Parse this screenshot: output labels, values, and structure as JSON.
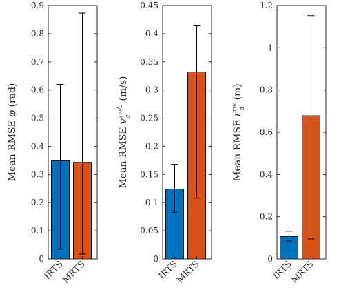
{
  "chart_data": [
    {
      "type": "bar",
      "categories": [
        "IRTS",
        "MRTS"
      ],
      "values": [
        0.349,
        0.343
      ],
      "error_low": [
        0.035,
        0.017
      ],
      "error_high": [
        0.62,
        0.873
      ],
      "colors": [
        "#0072BD",
        "#D95319"
      ],
      "ylabel": {
        "prefix": "Mean RMSE ",
        "symbol": "φ",
        "sup": "",
        "sub": "",
        "unit": " (rad)"
      },
      "ylim": [
        0,
        0.9
      ],
      "yticks": [
        0,
        0.1,
        0.2,
        0.3,
        0.4,
        0.5,
        0.6,
        0.7,
        0.8,
        0.9
      ],
      "ytick_labels": [
        "0",
        "0.1",
        "0.2",
        "0.3",
        "0.4",
        "0.5",
        "0.6",
        "0.7",
        "0.8",
        "0.9"
      ]
    },
    {
      "type": "bar",
      "categories": [
        "IRTS",
        "MRTS"
      ],
      "values": [
        0.124,
        0.332
      ],
      "error_low": [
        0.082,
        0.108
      ],
      "error_high": [
        0.168,
        0.414
      ],
      "colors": [
        "#0072BD",
        "#D95319"
      ],
      "ylabel": {
        "prefix": "Mean RMSE ",
        "symbol": "v",
        "sup": "zw/a",
        "sub": "a",
        "unit": " (m/s)"
      },
      "ylim": [
        0,
        0.45
      ],
      "yticks": [
        0,
        0.05,
        0.1,
        0.15,
        0.2,
        0.25,
        0.3,
        0.35,
        0.4,
        0.45
      ],
      "ytick_labels": [
        "0",
        "0.05",
        "0.1",
        "0.15",
        "0.2",
        "0.25",
        "0.3",
        "0.35",
        "0.4",
        "0.45"
      ]
    },
    {
      "type": "bar",
      "categories": [
        "IRTS",
        "MRTS"
      ],
      "values": [
        0.107,
        0.678
      ],
      "error_low": [
        0.085,
        0.095
      ],
      "error_high": [
        0.131,
        1.152
      ],
      "colors": [
        "#0072BD",
        "#D95319"
      ],
      "ylabel": {
        "prefix": "Mean RMSE ",
        "symbol": "r",
        "sup": "zw",
        "sub": "a",
        "unit": " (m)"
      },
      "ylim": [
        0,
        1.2
      ],
      "yticks": [
        0,
        0.2,
        0.4,
        0.6,
        0.8,
        1,
        1.2
      ],
      "ytick_labels": [
        "0",
        "0.2",
        "0.4",
        "0.6",
        "0.8",
        "1",
        "1.2"
      ]
    }
  ]
}
